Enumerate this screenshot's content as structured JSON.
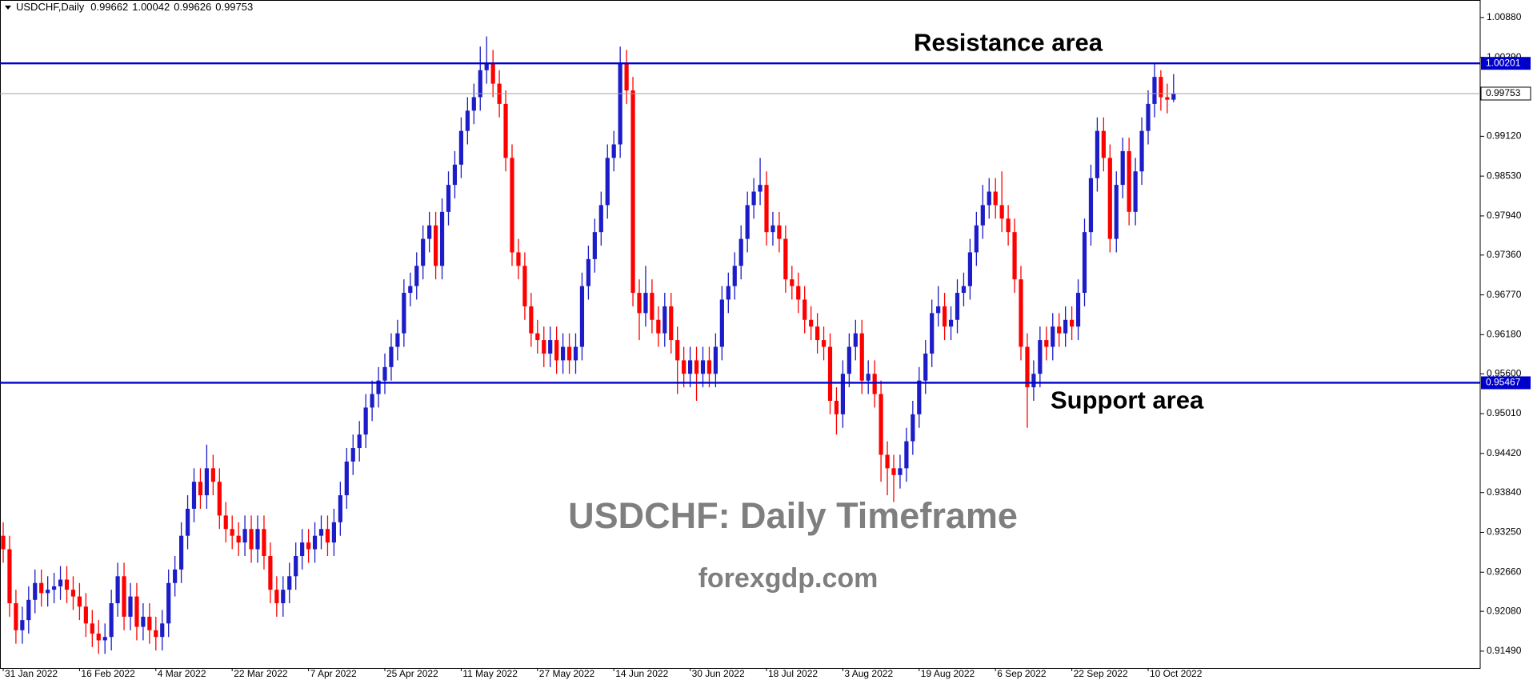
{
  "chart_data": {
    "type": "candlestick",
    "symbol": "USDCHF,Daily",
    "annotations": [
      "USDCHF: Daily Timeframe",
      "forexgdp.com"
    ],
    "up_color": "#1c1cc8",
    "down_color": "#ff0000",
    "ylim": [
      0.9124,
      1.0114
    ],
    "yticks": [
      {
        "value": 0.9149,
        "label": "0.91490"
      },
      {
        "value": 0.9208,
        "label": "0.92080"
      },
      {
        "value": 0.9266,
        "label": "0.92660"
      },
      {
        "value": 0.9325,
        "label": "0.93250"
      },
      {
        "value": 0.9384,
        "label": "0.93840"
      },
      {
        "value": 0.9442,
        "label": "0.94420"
      },
      {
        "value": 0.9501,
        "label": "0.95010"
      },
      {
        "value": 0.956,
        "label": "0.95600"
      },
      {
        "value": 0.9618,
        "label": "0.96180"
      },
      {
        "value": 0.9677,
        "label": "0.96770"
      },
      {
        "value": 0.9736,
        "label": "0.97360"
      },
      {
        "value": 0.9794,
        "label": "0.97940"
      },
      {
        "value": 0.9853,
        "label": "0.98530"
      },
      {
        "value": 0.9912,
        "label": "0.99120"
      },
      {
        "value": 1.0029,
        "label": "1.00290"
      },
      {
        "value": 1.0088,
        "label": "1.00880"
      }
    ],
    "levels": [
      {
        "name": "Resistance area",
        "value": 1.00201,
        "color": "#0000cc"
      },
      {
        "name": "Support area",
        "value": 0.95467,
        "color": "#0000cc"
      }
    ],
    "price_line_color": "#a0a0a0",
    "categories": [
      "31 Jan 2022",
      null,
      null,
      null,
      null,
      null,
      null,
      null,
      null,
      null,
      null,
      null,
      "16 Feb 2022",
      null,
      null,
      null,
      null,
      null,
      null,
      null,
      null,
      null,
      null,
      null,
      "4 Mar 2022",
      null,
      null,
      null,
      null,
      null,
      null,
      null,
      null,
      null,
      null,
      null,
      "22 Mar 2022",
      null,
      null,
      null,
      null,
      null,
      null,
      null,
      null,
      null,
      null,
      null,
      "7 Apr 2022",
      null,
      null,
      null,
      null,
      null,
      null,
      null,
      null,
      null,
      null,
      null,
      "25 Apr 2022",
      null,
      null,
      null,
      null,
      null,
      null,
      null,
      null,
      null,
      null,
      null,
      "11 May 2022",
      null,
      null,
      null,
      null,
      null,
      null,
      null,
      null,
      null,
      null,
      null,
      "27 May 2022",
      null,
      null,
      null,
      null,
      null,
      null,
      null,
      null,
      null,
      null,
      null,
      "14 Jun 2022",
      null,
      null,
      null,
      null,
      null,
      null,
      null,
      null,
      null,
      null,
      null,
      "30 Jun 2022",
      null,
      null,
      null,
      null,
      null,
      null,
      null,
      null,
      null,
      null,
      null,
      "18 Jul 2022",
      null,
      null,
      null,
      null,
      null,
      null,
      null,
      null,
      null,
      null,
      null,
      "3 Aug 2022",
      null,
      null,
      null,
      null,
      null,
      null,
      null,
      null,
      null,
      null,
      null,
      "19 Aug 2022",
      null,
      null,
      null,
      null,
      null,
      null,
      null,
      null,
      null,
      null,
      null,
      "6 Sep 2022",
      null,
      null,
      null,
      null,
      null,
      null,
      null,
      null,
      null,
      null,
      null,
      "22 Sep 2022",
      null,
      null,
      null,
      null,
      null,
      null,
      null,
      null,
      null,
      null,
      null,
      "10 Oct 2022",
      null,
      null,
      null,
      null
    ],
    "open": [
      0.932,
      0.93,
      0.922,
      0.918,
      0.9195,
      0.9225,
      0.925,
      0.9235,
      0.924,
      0.9245,
      0.9255,
      0.924,
      0.923,
      0.9215,
      0.919,
      0.9175,
      0.9165,
      0.917,
      0.922,
      0.926,
      0.92,
      0.923,
      0.9185,
      0.92,
      0.918,
      0.917,
      0.919,
      0.925,
      0.927,
      0.932,
      0.936,
      0.94,
      0.938,
      0.942,
      0.94,
      0.935,
      0.933,
      0.932,
      0.931,
      0.933,
      0.93,
      0.933,
      0.929,
      0.924,
      0.922,
      0.924,
      0.926,
      0.929,
      0.931,
      0.93,
      0.932,
      0.933,
      0.931,
      0.934,
      0.938,
      0.943,
      0.945,
      0.947,
      0.951,
      0.953,
      0.955,
      0.957,
      0.96,
      0.962,
      0.968,
      0.969,
      0.972,
      0.976,
      0.978,
      0.972,
      0.98,
      0.984,
      0.987,
      0.992,
      0.995,
      0.997,
      1.001,
      1.002,
      0.999,
      0.996,
      0.988,
      0.974,
      0.972,
      0.966,
      0.962,
      0.961,
      0.959,
      0.961,
      0.958,
      0.96,
      0.958,
      0.96,
      0.969,
      0.973,
      0.977,
      0.981,
      0.988,
      0.99,
      1.002,
      0.998,
      0.968,
      0.965,
      0.968,
      0.964,
      0.962,
      0.966,
      0.961,
      0.958,
      0.956,
      0.958,
      0.956,
      0.958,
      0.956,
      0.96,
      0.967,
      0.969,
      0.972,
      0.976,
      0.981,
      0.983,
      0.984,
      0.977,
      0.978,
      0.976,
      0.97,
      0.969,
      0.967,
      0.964,
      0.963,
      0.961,
      0.96,
      0.952,
      0.95,
      0.956,
      0.96,
      0.962,
      0.955,
      0.956,
      0.953,
      0.944,
      0.942,
      0.941,
      0.942,
      0.946,
      0.95,
      0.955,
      0.959,
      0.965,
      0.966,
      0.963,
      0.964,
      0.968,
      0.969,
      0.974,
      0.978,
      0.981,
      0.983,
      0.981,
      0.979,
      0.977,
      0.97,
      0.96,
      0.954,
      0.956,
      0.961,
      0.96,
      0.963,
      0.962,
      0.964,
      0.963,
      0.968,
      0.977,
      0.985,
      0.992,
      0.988,
      0.976,
      0.984,
      0.989,
      0.98,
      0.986,
      0.992,
      0.996,
      1.0,
      0.997,
      0.99662
    ],
    "high": [
      0.934,
      0.932,
      0.924,
      0.9215,
      0.9245,
      0.927,
      0.927,
      0.926,
      0.9265,
      0.9275,
      0.9275,
      0.926,
      0.925,
      0.9235,
      0.921,
      0.9195,
      0.919,
      0.924,
      0.928,
      0.928,
      0.925,
      0.925,
      0.922,
      0.922,
      0.92,
      0.921,
      0.927,
      0.929,
      0.934,
      0.938,
      0.942,
      0.942,
      0.9455,
      0.944,
      0.942,
      0.937,
      0.935,
      0.934,
      0.935,
      0.935,
      0.935,
      0.935,
      0.931,
      0.926,
      0.926,
      0.928,
      0.931,
      0.933,
      0.933,
      0.934,
      0.935,
      0.935,
      0.936,
      0.94,
      0.945,
      0.947,
      0.949,
      0.953,
      0.955,
      0.957,
      0.959,
      0.962,
      0.964,
      0.97,
      0.971,
      0.974,
      0.978,
      0.98,
      0.98,
      0.982,
      0.986,
      0.989,
      0.994,
      0.997,
      0.999,
      1.0045,
      1.006,
      1.004,
      1.001,
      0.998,
      0.99,
      0.976,
      0.974,
      0.968,
      0.964,
      0.963,
      0.963,
      0.963,
      0.962,
      0.962,
      0.962,
      0.971,
      0.975,
      0.979,
      0.983,
      0.99,
      0.992,
      1.0045,
      1.004,
      1.0,
      0.97,
      0.972,
      0.97,
      0.966,
      0.968,
      0.968,
      0.963,
      0.96,
      0.96,
      0.96,
      0.96,
      0.96,
      0.962,
      0.969,
      0.971,
      0.974,
      0.978,
      0.983,
      0.985,
      0.988,
      0.986,
      0.98,
      0.98,
      0.978,
      0.972,
      0.971,
      0.969,
      0.966,
      0.965,
      0.963,
      0.962,
      0.954,
      0.958,
      0.962,
      0.964,
      0.964,
      0.958,
      0.958,
      0.955,
      0.946,
      0.944,
      0.944,
      0.948,
      0.952,
      0.957,
      0.961,
      0.967,
      0.969,
      0.968,
      0.966,
      0.97,
      0.971,
      0.976,
      0.98,
      0.984,
      0.985,
      0.985,
      0.986,
      0.981,
      0.979,
      0.972,
      0.962,
      0.958,
      0.963,
      0.963,
      0.965,
      0.965,
      0.966,
      0.966,
      0.97,
      0.979,
      0.987,
      0.994,
      0.994,
      0.99,
      0.986,
      0.991,
      0.991,
      0.988,
      0.994,
      0.998,
      1.002,
      1.001,
      0.999,
      1.00042
    ],
    "low": [
      0.928,
      0.92,
      0.916,
      0.916,
      0.9175,
      0.9205,
      0.9215,
      0.9215,
      0.922,
      0.9225,
      0.922,
      0.921,
      0.9195,
      0.917,
      0.9155,
      0.9145,
      0.9145,
      0.915,
      0.92,
      0.918,
      0.918,
      0.9165,
      0.9165,
      0.916,
      0.915,
      0.915,
      0.917,
      0.923,
      0.925,
      0.93,
      0.934,
      0.936,
      0.936,
      0.938,
      0.933,
      0.931,
      0.93,
      0.929,
      0.929,
      0.928,
      0.928,
      0.927,
      0.922,
      0.92,
      0.92,
      0.922,
      0.924,
      0.927,
      0.928,
      0.928,
      0.93,
      0.929,
      0.929,
      0.932,
      0.936,
      0.941,
      0.943,
      0.945,
      0.949,
      0.951,
      0.953,
      0.955,
      0.958,
      0.96,
      0.966,
      0.967,
      0.97,
      0.974,
      0.97,
      0.97,
      0.978,
      0.982,
      0.985,
      0.99,
      0.993,
      0.995,
      0.999,
      0.997,
      0.994,
      0.986,
      0.972,
      0.97,
      0.964,
      0.96,
      0.959,
      0.957,
      0.957,
      0.956,
      0.956,
      0.956,
      0.956,
      0.958,
      0.967,
      0.971,
      0.975,
      0.979,
      0.986,
      0.988,
      0.996,
      0.966,
      0.961,
      0.963,
      0.962,
      0.96,
      0.96,
      0.959,
      0.953,
      0.954,
      0.954,
      0.952,
      0.954,
      0.954,
      0.954,
      0.958,
      0.965,
      0.967,
      0.97,
      0.974,
      0.979,
      0.981,
      0.975,
      0.975,
      0.974,
      0.968,
      0.967,
      0.965,
      0.962,
      0.961,
      0.959,
      0.958,
      0.95,
      0.947,
      0.948,
      0.954,
      0.958,
      0.953,
      0.953,
      0.951,
      0.94,
      0.938,
      0.937,
      0.939,
      0.94,
      0.944,
      0.948,
      0.953,
      0.957,
      0.963,
      0.961,
      0.961,
      0.962,
      0.966,
      0.967,
      0.972,
      0.976,
      0.979,
      0.979,
      0.977,
      0.975,
      0.968,
      0.958,
      0.948,
      0.952,
      0.954,
      0.958,
      0.958,
      0.96,
      0.96,
      0.961,
      0.961,
      0.966,
      0.975,
      0.983,
      0.986,
      0.974,
      0.974,
      0.982,
      0.978,
      0.978,
      0.984,
      0.99,
      0.994,
      0.995,
      0.9946,
      0.99626
    ],
    "close": [
      0.93,
      0.922,
      0.918,
      0.9195,
      0.9225,
      0.925,
      0.9235,
      0.924,
      0.9245,
      0.9255,
      0.924,
      0.923,
      0.9215,
      0.919,
      0.9175,
      0.9165,
      0.917,
      0.922,
      0.926,
      0.92,
      0.923,
      0.9185,
      0.92,
      0.918,
      0.917,
      0.919,
      0.925,
      0.927,
      0.932,
      0.936,
      0.94,
      0.938,
      0.942,
      0.94,
      0.935,
      0.933,
      0.932,
      0.931,
      0.933,
      0.93,
      0.933,
      0.929,
      0.924,
      0.922,
      0.924,
      0.926,
      0.929,
      0.931,
      0.93,
      0.932,
      0.933,
      0.931,
      0.934,
      0.938,
      0.943,
      0.945,
      0.947,
      0.951,
      0.953,
      0.955,
      0.957,
      0.96,
      0.962,
      0.968,
      0.969,
      0.972,
      0.976,
      0.978,
      0.972,
      0.98,
      0.984,
      0.987,
      0.992,
      0.995,
      0.997,
      1.001,
      1.002,
      0.999,
      0.996,
      0.988,
      0.974,
      0.972,
      0.966,
      0.962,
      0.961,
      0.959,
      0.961,
      0.958,
      0.96,
      0.958,
      0.96,
      0.969,
      0.973,
      0.977,
      0.981,
      0.988,
      0.99,
      1.002,
      0.998,
      0.968,
      0.965,
      0.968,
      0.964,
      0.962,
      0.966,
      0.961,
      0.958,
      0.956,
      0.958,
      0.956,
      0.958,
      0.956,
      0.96,
      0.967,
      0.969,
      0.972,
      0.976,
      0.981,
      0.983,
      0.984,
      0.977,
      0.978,
      0.976,
      0.97,
      0.969,
      0.967,
      0.964,
      0.963,
      0.961,
      0.96,
      0.952,
      0.95,
      0.956,
      0.96,
      0.962,
      0.955,
      0.956,
      0.953,
      0.944,
      0.942,
      0.941,
      0.942,
      0.946,
      0.95,
      0.955,
      0.959,
      0.965,
      0.966,
      0.963,
      0.964,
      0.968,
      0.969,
      0.974,
      0.978,
      0.981,
      0.983,
      0.981,
      0.979,
      0.977,
      0.97,
      0.96,
      0.954,
      0.956,
      0.961,
      0.96,
      0.963,
      0.962,
      0.964,
      0.963,
      0.968,
      0.977,
      0.985,
      0.992,
      0.988,
      0.976,
      0.984,
      0.989,
      0.98,
      0.986,
      0.992,
      0.996,
      1.0,
      0.997,
      0.99662,
      0.99753
    ]
  }
}
